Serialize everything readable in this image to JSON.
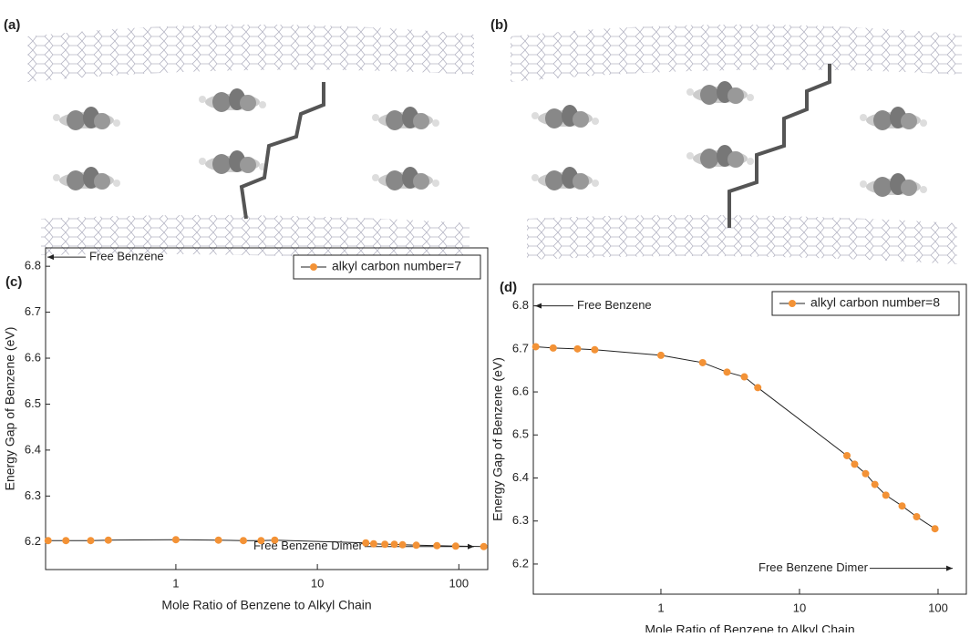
{
  "panels": [
    {
      "label": "(a)"
    },
    {
      "label": "(b)"
    }
  ],
  "chart_data": [
    {
      "type": "line",
      "panel": "(c)",
      "xlabel": "Mole Ratio of Benzene to Alkyl Chain",
      "ylabel": "Energy Gap of Benzene (eV)",
      "log_x": true,
      "xlim": [
        0.12,
        160
      ],
      "xticks": [
        1,
        10,
        100
      ],
      "ylim": [
        6.14,
        6.84
      ],
      "yticks": [
        6.2,
        6.3,
        6.4,
        6.5,
        6.6,
        6.7,
        6.8
      ],
      "legend": "upper right",
      "x": [
        0.125,
        0.167,
        0.25,
        0.333,
        1,
        2,
        3,
        4,
        5,
        22,
        25,
        30,
        35,
        40,
        50,
        70,
        95,
        150
      ],
      "series": [
        {
          "name": "alkyl carbon number=7",
          "color": "#f39236",
          "values": [
            6.203,
            6.203,
            6.203,
            6.204,
            6.205,
            6.204,
            6.203,
            6.203,
            6.204,
            6.198,
            6.196,
            6.195,
            6.195,
            6.194,
            6.193,
            6.192,
            6.191,
            6.19
          ]
        }
      ],
      "annotations": [
        {
          "text": "Free Benzene",
          "y": 6.82
        },
        {
          "text": "Free Benzene Dimer",
          "y": 6.19
        }
      ]
    },
    {
      "type": "line",
      "panel": "(d)",
      "xlabel": "Mole Ratio of Benzene to Alkyl Chain",
      "ylabel": "Energy Gap of Benzene (eV)",
      "log_x": true,
      "xlim": [
        0.12,
        160
      ],
      "xticks": [
        1,
        10,
        100
      ],
      "ylim": [
        6.13,
        6.85
      ],
      "yticks": [
        6.2,
        6.3,
        6.4,
        6.5,
        6.6,
        6.7,
        6.8
      ],
      "legend": "upper right",
      "x": [
        0.125,
        0.167,
        0.25,
        0.333,
        1,
        2,
        3,
        4,
        5,
        22,
        25,
        30,
        35,
        42,
        55,
        70,
        95
      ],
      "series": [
        {
          "name": "alkyl carbon number=8",
          "color": "#f39236",
          "values": [
            6.705,
            6.702,
            6.7,
            6.698,
            6.685,
            6.668,
            6.646,
            6.635,
            6.61,
            6.452,
            6.432,
            6.41,
            6.385,
            6.36,
            6.335,
            6.31,
            6.282
          ]
        }
      ],
      "annotations": [
        {
          "text": "Free Benzene",
          "y": 6.8
        },
        {
          "text": "Free Benzene Dimer",
          "y": 6.19
        }
      ]
    }
  ]
}
